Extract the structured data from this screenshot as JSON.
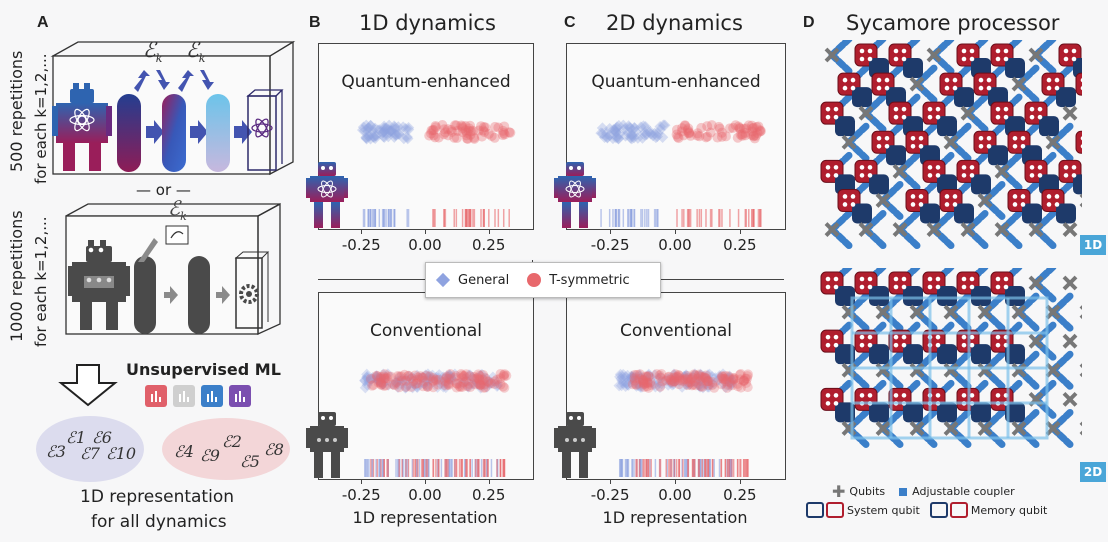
{
  "panel_a": {
    "letter": "A",
    "box1_label_line1": "500 repetitions",
    "box1_label_line2": "for each k=1,2,...",
    "channel_symbol": "ℰ",
    "channel_sub": "k",
    "or_label": "— or —",
    "box2_label_line1": "1000 repetitions",
    "box2_label_line2": "for each k=1,2,...",
    "ml_title": "Unsupervised ML",
    "ml_icon_colors": [
      "#e0606a",
      "#cfcfcf",
      "#3b7fc9",
      "#7b4fb0"
    ],
    "cluster_blue": [
      "ℰ3",
      "ℰ1",
      "ℰ7",
      "ℰ6",
      "ℰ10"
    ],
    "cluster_red": [
      "ℰ4",
      "ℰ9",
      "ℰ2",
      "ℰ5",
      "ℰ8"
    ],
    "caption_line1": "1D representation",
    "caption_line2": "for all dynamics"
  },
  "panel_b": {
    "letter": "B",
    "title": "1D dynamics"
  },
  "panel_c": {
    "letter": "C",
    "title": "2D dynamics"
  },
  "panel_d": {
    "letter": "D",
    "title": "Sycamore processor",
    "tag_top": "1D",
    "tag_bottom": "2D",
    "legend_qubits": "Qubits",
    "legend_coupler": "Adjustable coupler",
    "legend_system": "System qubit",
    "legend_memory": "Memory qubit"
  },
  "legend": {
    "general": "General",
    "tsym": "T-symmetric",
    "general_color": "#8fa3e0",
    "tsym_color": "#e8686c"
  },
  "chart_data": [
    {
      "type": "scatter",
      "panel": "B-top",
      "title": "Quantum-enhanced",
      "xlabel": "",
      "xticks": [
        "-0.25",
        "0.00",
        "0.25"
      ],
      "xlim": [
        -0.42,
        0.42
      ],
      "series": [
        {
          "name": "General",
          "range": [
            -0.25,
            -0.06
          ]
        },
        {
          "name": "T-symmetric",
          "range": [
            0.01,
            0.34
          ]
        }
      ]
    },
    {
      "type": "scatter",
      "panel": "B-bottom",
      "title": "Conventional",
      "xlabel": "1D representation",
      "xticks": [
        "-0.25",
        "0.00",
        "0.25"
      ],
      "xlim": [
        -0.42,
        0.42
      ],
      "series": [
        {
          "name": "General",
          "range": [
            -0.24,
            0.3
          ]
        },
        {
          "name": "T-symmetric",
          "range": [
            -0.23,
            0.32
          ]
        }
      ]
    },
    {
      "type": "scatter",
      "panel": "C-top",
      "title": "Quantum-enhanced",
      "xlabel": "",
      "xticks": [
        "-0.25",
        "0.00",
        "0.25"
      ],
      "xlim": [
        -0.42,
        0.42
      ],
      "series": [
        {
          "name": "General",
          "range": [
            -0.29,
            -0.04
          ]
        },
        {
          "name": "T-symmetric",
          "range": [
            0.0,
            0.33
          ]
        }
      ]
    },
    {
      "type": "scatter",
      "panel": "C-bottom",
      "title": "Conventional",
      "xlabel": "1D representation",
      "xticks": [
        "-0.25",
        "0.00",
        "0.25"
      ],
      "xlim": [
        -0.42,
        0.42
      ],
      "series": [
        {
          "name": "General",
          "range": [
            -0.22,
            0.22
          ]
        },
        {
          "name": "T-symmetric",
          "range": [
            -0.18,
            0.28
          ]
        }
      ]
    }
  ]
}
